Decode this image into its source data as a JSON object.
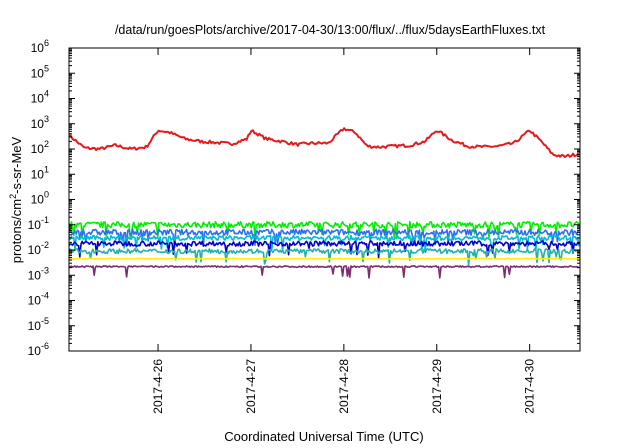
{
  "chart_data": {
    "type": "line",
    "title": "/data/run/goesPlots/archive/2017-04-30/13:00/flux/../flux/5daysEarthFluxes.txt",
    "xlabel": "Coordinated Universal Time (UTC)",
    "ylabel": "protons/cm²-s-sr-MeV",
    "ylabel_parts": {
      "before": "protons/cm",
      "sup": "2",
      "after": "-s-sr-MeV"
    },
    "y_scale": "log",
    "ylim": [
      "1e-6",
      "1e6"
    ],
    "y_tick_labels": [
      {
        "base": "10",
        "exp": "-6"
      },
      {
        "base": "10",
        "exp": "-5"
      },
      {
        "base": "10",
        "exp": "-4"
      },
      {
        "base": "10",
        "exp": "-3"
      },
      {
        "base": "10",
        "exp": "-2"
      },
      {
        "base": "10",
        "exp": "-1"
      },
      {
        "base": "10",
        "exp": "0"
      },
      {
        "base": "10",
        "exp": "1"
      },
      {
        "base": "10",
        "exp": "2"
      },
      {
        "base": "10",
        "exp": "3"
      },
      {
        "base": "10",
        "exp": "4"
      },
      {
        "base": "10",
        "exp": "5"
      },
      {
        "base": "10",
        "exp": "6"
      }
    ],
    "xlim": [
      "2017-04-25T01:00",
      "2017-04-30T13:00"
    ],
    "x_ticks": [
      "2017-4-26",
      "2017-4-27",
      "2017-4-28",
      "2017-4-29",
      "2017-4-30"
    ],
    "grid": false,
    "legend": "none",
    "series": [
      {
        "color": "#e41a1c",
        "x": [
          "2017-04-25T01:00",
          "2017-04-25T05:00",
          "2017-04-25T09:00",
          "2017-04-25T13:00",
          "2017-04-25T17:00",
          "2017-04-25T21:00",
          "2017-04-26T00:00",
          "2017-04-26T03:00",
          "2017-04-26T07:00",
          "2017-04-26T11:00",
          "2017-04-26T15:00",
          "2017-04-26T19:00",
          "2017-04-26T23:00",
          "2017-04-27T00:00",
          "2017-04-27T04:00",
          "2017-04-27T08:00",
          "2017-04-27T12:00",
          "2017-04-27T16:00",
          "2017-04-27T20:00",
          "2017-04-28T00:00",
          "2017-04-28T03:00",
          "2017-04-28T06:00",
          "2017-04-28T09:00",
          "2017-04-28T13:00",
          "2017-04-28T17:00",
          "2017-04-28T21:00",
          "2017-04-29T00:00",
          "2017-04-29T04:00",
          "2017-04-29T08:00",
          "2017-04-29T12:00",
          "2017-04-29T16:00",
          "2017-04-29T20:00",
          "2017-04-30T00:00",
          "2017-04-30T03:00",
          "2017-04-30T06:00",
          "2017-04-30T09:00",
          "2017-04-30T13:00"
        ],
        "y": [
          350,
          110,
          100,
          140,
          100,
          120,
          550,
          450,
          250,
          200,
          180,
          160,
          250,
          550,
          250,
          200,
          150,
          170,
          170,
          650,
          450,
          130,
          120,
          130,
          140,
          200,
          560,
          220,
          130,
          120,
          130,
          170,
          550,
          200,
          60,
          50,
          65
        ]
      },
      {
        "color": "#00ee00",
        "x": [
          "2017-04-25T01:00",
          "2017-04-26T12:00",
          "2017-04-28T00:00",
          "2017-04-29T12:00",
          "2017-04-30T13:00"
        ],
        "y": [
          0.1,
          0.1,
          0.1,
          0.1,
          0.1
        ]
      },
      {
        "color": "#2f6ff5",
        "x": [
          "2017-04-25T01:00",
          "2017-04-26T12:00",
          "2017-04-28T00:00",
          "2017-04-29T12:00",
          "2017-04-30T13:00"
        ],
        "y": [
          0.05,
          0.05,
          0.05,
          0.05,
          0.05
        ]
      },
      {
        "color": "#00bcd4",
        "x": [
          "2017-04-25T01:00",
          "2017-04-26T12:00",
          "2017-04-28T00:00",
          "2017-04-29T12:00",
          "2017-04-30T13:00"
        ],
        "y": [
          0.03,
          0.03,
          0.03,
          0.03,
          0.03
        ]
      },
      {
        "color": "#0000cc",
        "x": [
          "2017-04-25T01:00",
          "2017-04-26T12:00",
          "2017-04-28T00:00",
          "2017-04-29T12:00",
          "2017-04-30T13:00"
        ],
        "y": [
          0.018,
          0.018,
          0.018,
          0.018,
          0.018
        ]
      },
      {
        "color": "#20b2aa",
        "x": [
          "2017-04-25T01:00",
          "2017-04-26T12:00",
          "2017-04-28T00:00",
          "2017-04-29T12:00",
          "2017-04-30T13:00"
        ],
        "y": [
          0.009,
          0.009,
          0.009,
          0.009,
          0.009
        ]
      },
      {
        "color": "#ffee00",
        "x": [
          "2017-04-25T01:00",
          "2017-04-26T12:00",
          "2017-04-28T00:00",
          "2017-04-29T12:00",
          "2017-04-30T13:00"
        ],
        "y": [
          0.0045,
          0.0045,
          0.0045,
          0.0045,
          0.0045
        ]
      },
      {
        "color": "#7b2d6e",
        "x": [
          "2017-04-25T01:00",
          "2017-04-26T12:00",
          "2017-04-28T00:00",
          "2017-04-29T12:00",
          "2017-04-30T13:00"
        ],
        "y": [
          0.0022,
          0.0022,
          0.0022,
          0.0022,
          0.0022
        ]
      }
    ]
  }
}
